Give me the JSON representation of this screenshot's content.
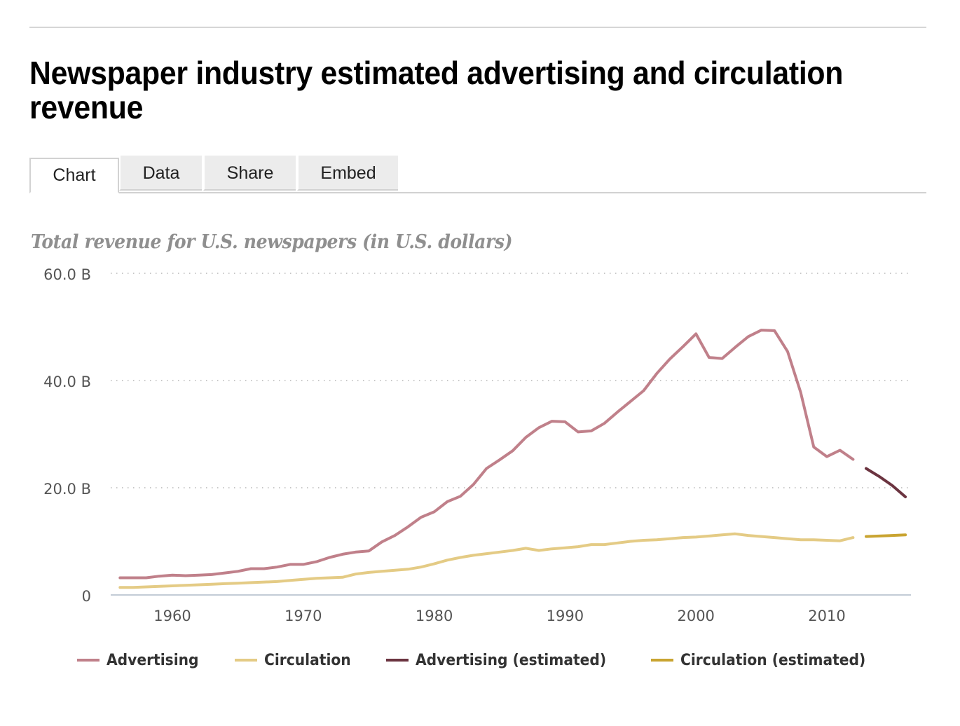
{
  "title": "Newspaper industry estimated advertising and circulation revenue",
  "tabs": [
    {
      "label": "Chart",
      "active": true
    },
    {
      "label": "Data",
      "active": false
    },
    {
      "label": "Share",
      "active": false
    },
    {
      "label": "Embed",
      "active": false
    }
  ],
  "chart_data": {
    "type": "line",
    "title": "Total revenue for U.S. newspapers (in U.S. dollars)",
    "xlabel": "",
    "ylabel": "",
    "xlim": [
      1956,
      2016
    ],
    "ylim": [
      0,
      60
    ],
    "y_unit": "billions",
    "y_ticks": [
      0,
      20,
      40,
      60
    ],
    "y_tick_labels": [
      "0",
      "20.0 B",
      "40.0 B",
      "60.0 B"
    ],
    "x_ticks": [
      1960,
      1970,
      1980,
      1990,
      2000,
      2010
    ],
    "x_tick_labels": [
      "1960",
      "1970",
      "1980",
      "1990",
      "2000",
      "2010"
    ],
    "grid": "horizontal-dotted",
    "legend_position": "bottom",
    "series": [
      {
        "name": "Advertising",
        "color": "#c0808a",
        "x": [
          1956,
          1957,
          1958,
          1959,
          1960,
          1961,
          1962,
          1963,
          1964,
          1965,
          1966,
          1967,
          1968,
          1969,
          1970,
          1971,
          1972,
          1973,
          1974,
          1975,
          1976,
          1977,
          1978,
          1979,
          1980,
          1981,
          1982,
          1983,
          1984,
          1985,
          1986,
          1987,
          1988,
          1989,
          1990,
          1991,
          1992,
          1993,
          1994,
          1995,
          1996,
          1997,
          1998,
          1999,
          2000,
          2001,
          2002,
          2003,
          2004,
          2005,
          2006,
          2007,
          2008,
          2009,
          2010,
          2011,
          2012
        ],
        "values": [
          3.2,
          3.2,
          3.2,
          3.5,
          3.7,
          3.6,
          3.7,
          3.8,
          4.1,
          4.4,
          4.9,
          4.9,
          5.2,
          5.7,
          5.7,
          6.2,
          7.0,
          7.6,
          8.0,
          8.2,
          9.9,
          11.1,
          12.7,
          14.5,
          15.5,
          17.4,
          18.4,
          20.6,
          23.6,
          25.2,
          26.9,
          29.4,
          31.2,
          32.4,
          32.3,
          30.4,
          30.6,
          32.0,
          34.1,
          36.1,
          38.1,
          41.3,
          44.0,
          46.3,
          48.7,
          44.3,
          44.1,
          46.2,
          48.2,
          49.4,
          49.3,
          45.4,
          37.8,
          27.6,
          25.8,
          27.0,
          25.3
        ]
      },
      {
        "name": "Circulation",
        "color": "#e4cb85",
        "x": [
          1956,
          1957,
          1958,
          1959,
          1960,
          1961,
          1962,
          1963,
          1964,
          1965,
          1966,
          1967,
          1968,
          1969,
          1970,
          1971,
          1972,
          1973,
          1974,
          1975,
          1976,
          1977,
          1978,
          1979,
          1980,
          1981,
          1982,
          1983,
          1984,
          1985,
          1986,
          1987,
          1988,
          1989,
          1990,
          1991,
          1992,
          1993,
          1994,
          1995,
          1996,
          1997,
          1998,
          1999,
          2000,
          2001,
          2002,
          2003,
          2004,
          2005,
          2006,
          2007,
          2008,
          2009,
          2010,
          2011,
          2012
        ],
        "values": [
          1.4,
          1.4,
          1.5,
          1.6,
          1.7,
          1.8,
          1.9,
          2.0,
          2.1,
          2.2,
          2.3,
          2.4,
          2.5,
          2.7,
          2.9,
          3.1,
          3.2,
          3.3,
          3.9,
          4.2,
          4.4,
          4.6,
          4.8,
          5.2,
          5.8,
          6.5,
          7.0,
          7.4,
          7.7,
          8.0,
          8.3,
          8.7,
          8.3,
          8.6,
          8.8,
          9.0,
          9.4,
          9.4,
          9.7,
          10.0,
          10.2,
          10.3,
          10.5,
          10.7,
          10.8,
          11.0,
          11.2,
          11.4,
          11.1,
          10.9,
          10.7,
          10.5,
          10.3,
          10.3,
          10.2,
          10.1,
          10.7
        ]
      },
      {
        "name": "Advertising (estimated)",
        "color": "#6b3440",
        "x": [
          2013,
          2014,
          2015,
          2016
        ],
        "values": [
          23.6,
          22.1,
          20.4,
          18.3
        ]
      },
      {
        "name": "Circulation (estimated)",
        "color": "#c9a431",
        "x": [
          2013,
          2014,
          2015,
          2016
        ],
        "values": [
          10.9,
          11.0,
          11.1,
          11.2
        ]
      }
    ]
  }
}
